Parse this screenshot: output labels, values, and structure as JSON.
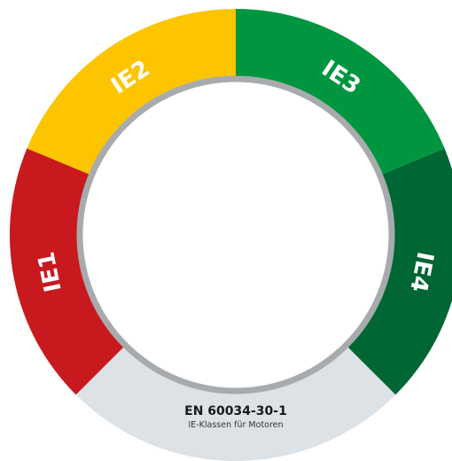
{
  "segments": [
    {
      "label": "IE1",
      "color": "#c8191f"
    },
    {
      "label": "IE2",
      "color": "#fdc400"
    },
    {
      "label": "IE3",
      "color": "#009640"
    },
    {
      "label": "IE4",
      "color": "#006633"
    }
  ],
  "standard": {
    "title": "EN 60034-30-1",
    "subtitle": "IE-Klassen für Motoren",
    "color": "#dde2e6"
  }
}
